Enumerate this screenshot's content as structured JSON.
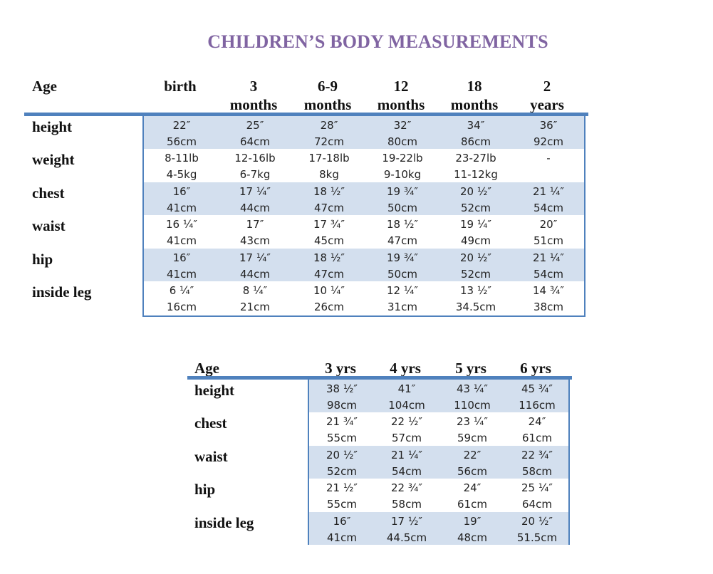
{
  "title": "CHILDREN’S BODY MEASUREMENTS",
  "table1": {
    "age_label": "Age",
    "columns": [
      {
        "line1": "birth",
        "line2": ""
      },
      {
        "line1": "3",
        "line2": "months"
      },
      {
        "line1": "6-9",
        "line2": "months"
      },
      {
        "line1": "12",
        "line2": "months"
      },
      {
        "line1": "18",
        "line2": "months"
      },
      {
        "line1": "2",
        "line2": "years"
      }
    ],
    "rows": [
      {
        "label": "height",
        "values": [
          [
            "22″",
            "56cm"
          ],
          [
            "25″",
            "64cm"
          ],
          [
            "28″",
            "72cm"
          ],
          [
            "32″",
            "80cm"
          ],
          [
            "34″",
            "86cm"
          ],
          [
            "36″",
            "92cm"
          ]
        ]
      },
      {
        "label": "weight",
        "values": [
          [
            "8-11lb",
            "4-5kg"
          ],
          [
            "12-16lb",
            "6-7kg"
          ],
          [
            "17-18lb",
            "8kg"
          ],
          [
            "19-22lb",
            "9-10kg"
          ],
          [
            "23-27lb",
            "11-12kg"
          ],
          [
            "-",
            ""
          ]
        ]
      },
      {
        "label": "chest",
        "values": [
          [
            "16″",
            "41cm"
          ],
          [
            "17 ¼″",
            "44cm"
          ],
          [
            "18 ½″",
            "47cm"
          ],
          [
            "19 ¾″",
            "50cm"
          ],
          [
            "20 ½″",
            "52cm"
          ],
          [
            "21 ¼″",
            "54cm"
          ]
        ]
      },
      {
        "label": "waist",
        "values": [
          [
            "16 ¼″",
            "41cm"
          ],
          [
            "17″",
            "43cm"
          ],
          [
            "17 ¾″",
            "45cm"
          ],
          [
            "18 ½″",
            "47cm"
          ],
          [
            "19 ¼″",
            "49cm"
          ],
          [
            "20″",
            "51cm"
          ]
        ]
      },
      {
        "label": "hip",
        "values": [
          [
            "16″",
            "41cm"
          ],
          [
            "17 ¼″",
            "44cm"
          ],
          [
            "18 ½″",
            "47cm"
          ],
          [
            "19 ¾″",
            "50cm"
          ],
          [
            "20 ½″",
            "52cm"
          ],
          [
            "21 ¼″",
            "54cm"
          ]
        ]
      },
      {
        "label": "inside leg",
        "values": [
          [
            "6 ¼″",
            "16cm"
          ],
          [
            "8 ¼″",
            "21cm"
          ],
          [
            "10 ¼″",
            "26cm"
          ],
          [
            "12 ¼″",
            "31cm"
          ],
          [
            "13 ½″",
            "34.5cm"
          ],
          [
            "14 ¾″",
            "38cm"
          ]
        ]
      }
    ]
  },
  "table2": {
    "age_label": "Age",
    "columns": [
      "3 yrs",
      "4 yrs",
      "5 yrs",
      "6 yrs"
    ],
    "rows": [
      {
        "label": "height",
        "values": [
          [
            "38 ½″",
            "98cm"
          ],
          [
            "41″",
            "104cm"
          ],
          [
            "43 ¼″",
            "110cm"
          ],
          [
            "45 ¾″",
            "116cm"
          ]
        ]
      },
      {
        "label": "chest",
        "values": [
          [
            "21 ¾″",
            "55cm"
          ],
          [
            "22 ½″",
            "57cm"
          ],
          [
            "23 ¼″",
            "59cm"
          ],
          [
            "24″",
            "61cm"
          ]
        ]
      },
      {
        "label": "waist",
        "values": [
          [
            "20 ½″",
            "52cm"
          ],
          [
            "21 ¼″",
            "54cm"
          ],
          [
            "22″",
            "56cm"
          ],
          [
            "22 ¾″",
            "58cm"
          ]
        ]
      },
      {
        "label": "hip",
        "values": [
          [
            "21 ½″",
            "55cm"
          ],
          [
            "22 ¾″",
            "58cm"
          ],
          [
            "24″",
            "61cm"
          ],
          [
            "25 ¼″",
            "64cm"
          ]
        ]
      },
      {
        "label": "inside leg",
        "values": [
          [
            "16″",
            "41cm"
          ],
          [
            "17 ½″",
            "44.5cm"
          ],
          [
            "19″",
            "48cm"
          ],
          [
            "20 ½″",
            "51.5cm"
          ]
        ]
      }
    ]
  },
  "colors": {
    "title": "#8064a2",
    "rule": "#4f81bd",
    "shade": "#d3dfee"
  }
}
